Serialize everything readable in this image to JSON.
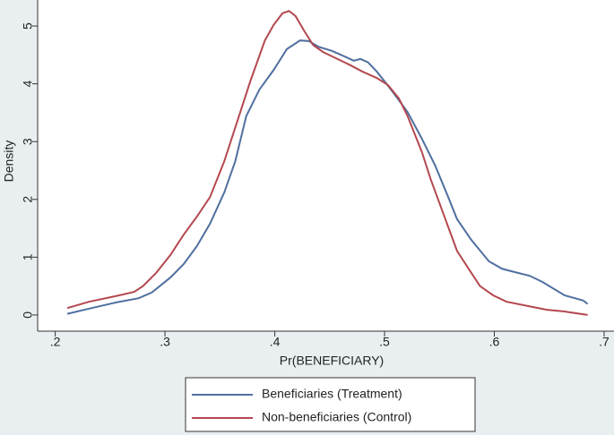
{
  "chart_data": {
    "type": "line",
    "x_label": "Pr(BENEFICIARY)",
    "y_label": "Density",
    "xlim": [
      0.184,
      0.709
    ],
    "ylim": [
      -0.28,
      5.45
    ],
    "xticks": [
      {
        "value": 0.2,
        "label": ".2"
      },
      {
        "value": 0.3,
        "label": ".3"
      },
      {
        "value": 0.4,
        "label": ".4"
      },
      {
        "value": 0.5,
        "label": ".5"
      },
      {
        "value": 0.6,
        "label": ".6"
      },
      {
        "value": 0.7,
        "label": ".7"
      }
    ],
    "yticks": [
      0,
      1,
      2,
      3,
      4,
      5
    ],
    "grid": false,
    "legend": "bottom",
    "series": [
      {
        "name": "Beneficiaries (Treatment)",
        "color": "#4f6f9f",
        "x": [
          0.211,
          0.231,
          0.256,
          0.276,
          0.288,
          0.305,
          0.317,
          0.329,
          0.341,
          0.354,
          0.364,
          0.374,
          0.386,
          0.399,
          0.411,
          0.423,
          0.431,
          0.44,
          0.452,
          0.464,
          0.472,
          0.478,
          0.485,
          0.493,
          0.501,
          0.509,
          0.521,
          0.534,
          0.546,
          0.558,
          0.566,
          0.579,
          0.595,
          0.607,
          0.619,
          0.632,
          0.644,
          0.664,
          0.681,
          0.685
        ],
        "values": [
          0.02,
          0.11,
          0.22,
          0.29,
          0.39,
          0.65,
          0.88,
          1.19,
          1.58,
          2.12,
          2.66,
          3.44,
          3.9,
          4.24,
          4.6,
          4.75,
          4.74,
          4.64,
          4.57,
          4.47,
          4.4,
          4.43,
          4.37,
          4.21,
          4.02,
          3.82,
          3.51,
          3.05,
          2.59,
          2.04,
          1.66,
          1.3,
          0.93,
          0.8,
          0.74,
          0.68,
          0.57,
          0.34,
          0.25,
          0.19
        ]
      },
      {
        "name": "Non-beneficiaries (Control)",
        "color": "#b4484f",
        "x": [
          0.211,
          0.231,
          0.256,
          0.272,
          0.28,
          0.292,
          0.305,
          0.317,
          0.329,
          0.341,
          0.354,
          0.366,
          0.378,
          0.391,
          0.399,
          0.407,
          0.413,
          0.419,
          0.427,
          0.435,
          0.444,
          0.456,
          0.468,
          0.48,
          0.493,
          0.503,
          0.513,
          0.521,
          0.534,
          0.542,
          0.554,
          0.566,
          0.579,
          0.587,
          0.599,
          0.611,
          0.632,
          0.648,
          0.664,
          0.685
        ],
        "values": [
          0.12,
          0.23,
          0.33,
          0.4,
          0.5,
          0.73,
          1.04,
          1.39,
          1.7,
          2.04,
          2.66,
          3.36,
          4.06,
          4.75,
          5.02,
          5.22,
          5.26,
          5.17,
          4.91,
          4.67,
          4.55,
          4.44,
          4.33,
          4.21,
          4.1,
          3.98,
          3.75,
          3.44,
          2.82,
          2.35,
          1.73,
          1.11,
          0.73,
          0.5,
          0.34,
          0.23,
          0.15,
          0.09,
          0.06,
          0.0
        ]
      }
    ]
  }
}
